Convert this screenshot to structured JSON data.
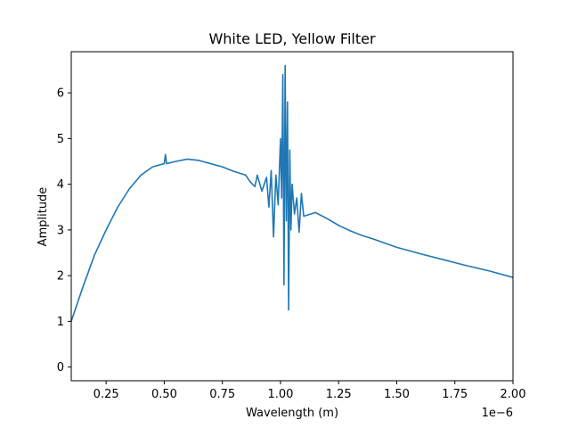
{
  "chart_data": {
    "type": "line",
    "title": "White LED, Yellow Filter",
    "xlabel": "Wavelength (m)",
    "ylabel": "Amplitude",
    "x_offset_label": "1e−6",
    "xlim": [
      1e-07,
      2e-06
    ],
    "ylim": [
      -0.3,
      6.9
    ],
    "grid": false,
    "x_ticks": [
      2.5e-07,
      5e-07,
      7.5e-07,
      1e-06,
      1.25e-06,
      1.5e-06,
      1.75e-06,
      2e-06
    ],
    "x_tick_labels": [
      "0.25",
      "0.50",
      "0.75",
      "1.00",
      "1.25",
      "1.50",
      "1.75",
      "2.00"
    ],
    "y_ticks": [
      0,
      1,
      2,
      3,
      4,
      5,
      6
    ],
    "y_tick_labels": [
      "0",
      "1",
      "2",
      "3",
      "4",
      "5",
      "6"
    ],
    "series": [
      {
        "color": "#1f77b4",
        "x": [
          1e-07,
          1.5e-07,
          2e-07,
          2.5e-07,
          3e-07,
          3.5e-07,
          4e-07,
          4.5e-07,
          5e-07,
          5.05e-07,
          5.1e-07,
          5.5e-07,
          6e-07,
          6.5e-07,
          7e-07,
          7.5e-07,
          8e-07,
          8.5e-07,
          8.7e-07,
          8.9e-07,
          9e-07,
          9.2e-07,
          9.4e-07,
          9.5e-07,
          9.6e-07,
          9.7e-07,
          9.8e-07,
          9.9e-07,
          1e-06,
          1.005e-06,
          1.01e-06,
          1.015e-06,
          1.02e-06,
          1.025e-06,
          1.03e-06,
          1.035e-06,
          1.04e-06,
          1.045e-06,
          1.05e-06,
          1.06e-06,
          1.07e-06,
          1.08e-06,
          1.09e-06,
          1.1e-06,
          1.15e-06,
          1.2e-06,
          1.25e-06,
          1.3e-06,
          1.35e-06,
          1.4e-06,
          1.5e-06,
          1.6e-06,
          1.7e-06,
          1.8e-06,
          1.9e-06,
          2e-06
        ],
        "y": [
          1.0,
          1.75,
          2.45,
          3.0,
          3.5,
          3.9,
          4.2,
          4.38,
          4.45,
          4.65,
          4.45,
          4.5,
          4.55,
          4.52,
          4.45,
          4.38,
          4.28,
          4.2,
          4.05,
          3.95,
          4.2,
          3.85,
          4.15,
          3.5,
          4.3,
          2.85,
          4.2,
          3.55,
          5.0,
          3.7,
          6.4,
          1.8,
          6.6,
          3.2,
          5.8,
          1.25,
          4.75,
          3.0,
          4.0,
          3.35,
          3.7,
          2.95,
          3.8,
          3.3,
          3.38,
          3.25,
          3.1,
          2.98,
          2.88,
          2.8,
          2.62,
          2.48,
          2.35,
          2.22,
          2.1,
          1.96
        ]
      }
    ]
  }
}
